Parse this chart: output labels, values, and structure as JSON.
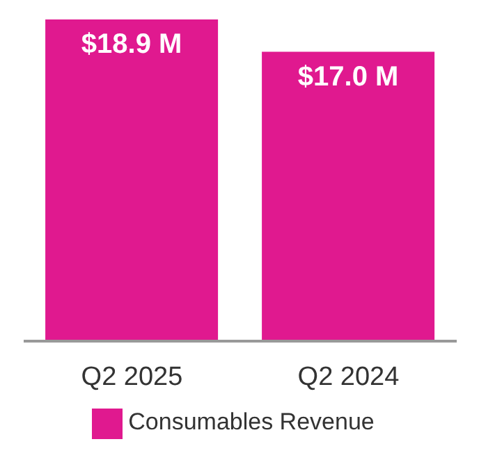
{
  "chart_data": {
    "type": "bar",
    "categories": [
      "Q2 2025",
      "Q2 2024"
    ],
    "series": [
      {
        "name": "Consumables Revenue",
        "color": "#e0198f",
        "values": [
          18.9,
          17.0
        ],
        "value_labels": [
          "$18.9 M",
          "$17.0 M"
        ]
      }
    ],
    "legend": "bottom",
    "grid": false
  }
}
